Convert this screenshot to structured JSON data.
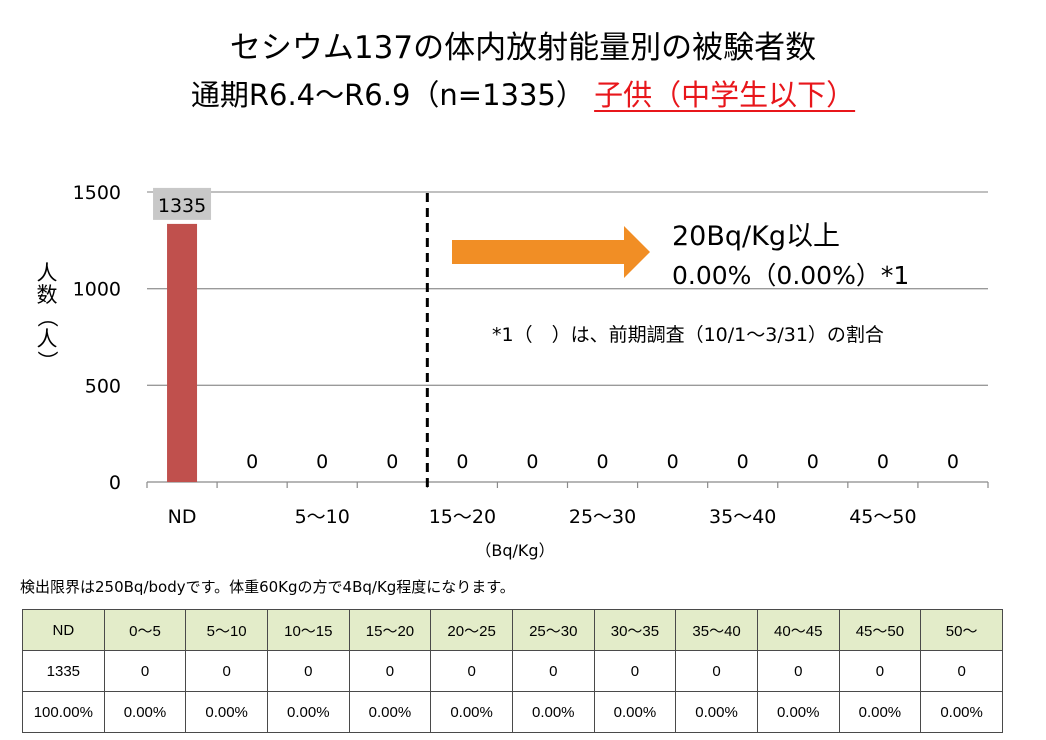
{
  "title": {
    "line1": "セシウム137の体内放射能量別の被験者数",
    "line2_main": "通期R6.4～R6.9（n=1335）",
    "line2_highlight": "子供（中学生以下）"
  },
  "colors": {
    "bar": "#c0504d",
    "arrow": "#f18e25",
    "highlight": "#e8161b",
    "table_header": "#e3ecc9"
  },
  "chart_data": {
    "type": "bar",
    "categories": [
      "ND",
      "0～5",
      "5～10",
      "10～15",
      "15～20",
      "20～25",
      "25～30",
      "30～35",
      "35～40",
      "40～45",
      "45～50",
      "50～"
    ],
    "x_tick_labels": [
      "ND",
      "",
      "5～10",
      "",
      "15～20",
      "",
      "25～30",
      "",
      "35～40",
      "",
      "45～50",
      ""
    ],
    "values": [
      1335,
      0,
      0,
      0,
      0,
      0,
      0,
      0,
      0,
      0,
      0,
      0
    ],
    "data_labels": [
      "1335",
      "0",
      "0",
      "0",
      "0",
      "0",
      "0",
      "0",
      "0",
      "0",
      "0",
      "0"
    ],
    "ylim": [
      0,
      1500
    ],
    "yticks": [
      0,
      500,
      1000,
      1500
    ],
    "ylabel": "人数（人）",
    "xlabel": "（Bq/Kg）",
    "grid": true,
    "threshold_after_category": 3,
    "annotations": {
      "threshold_title": "20Bq/Kg以上",
      "threshold_value": "0.00%（0.00%）*1",
      "note": "*1（　）は、前期調査（10/1～3/31）の割合"
    }
  },
  "footnote": "検出限界は250Bq/bodyです。体重60Kgの方で4Bq/Kg程度になります。",
  "table": {
    "headers": [
      "ND",
      "0～5",
      "5～10",
      "10～15",
      "15～20",
      "20～25",
      "25～30",
      "30～35",
      "35～40",
      "40～45",
      "45～50",
      "50～"
    ],
    "counts": [
      "1335",
      "0",
      "0",
      "0",
      "0",
      "0",
      "0",
      "0",
      "0",
      "0",
      "0",
      "0"
    ],
    "percents": [
      "100.00%",
      "0.00%",
      "0.00%",
      "0.00%",
      "0.00%",
      "0.00%",
      "0.00%",
      "0.00%",
      "0.00%",
      "0.00%",
      "0.00%",
      "0.00%"
    ]
  }
}
